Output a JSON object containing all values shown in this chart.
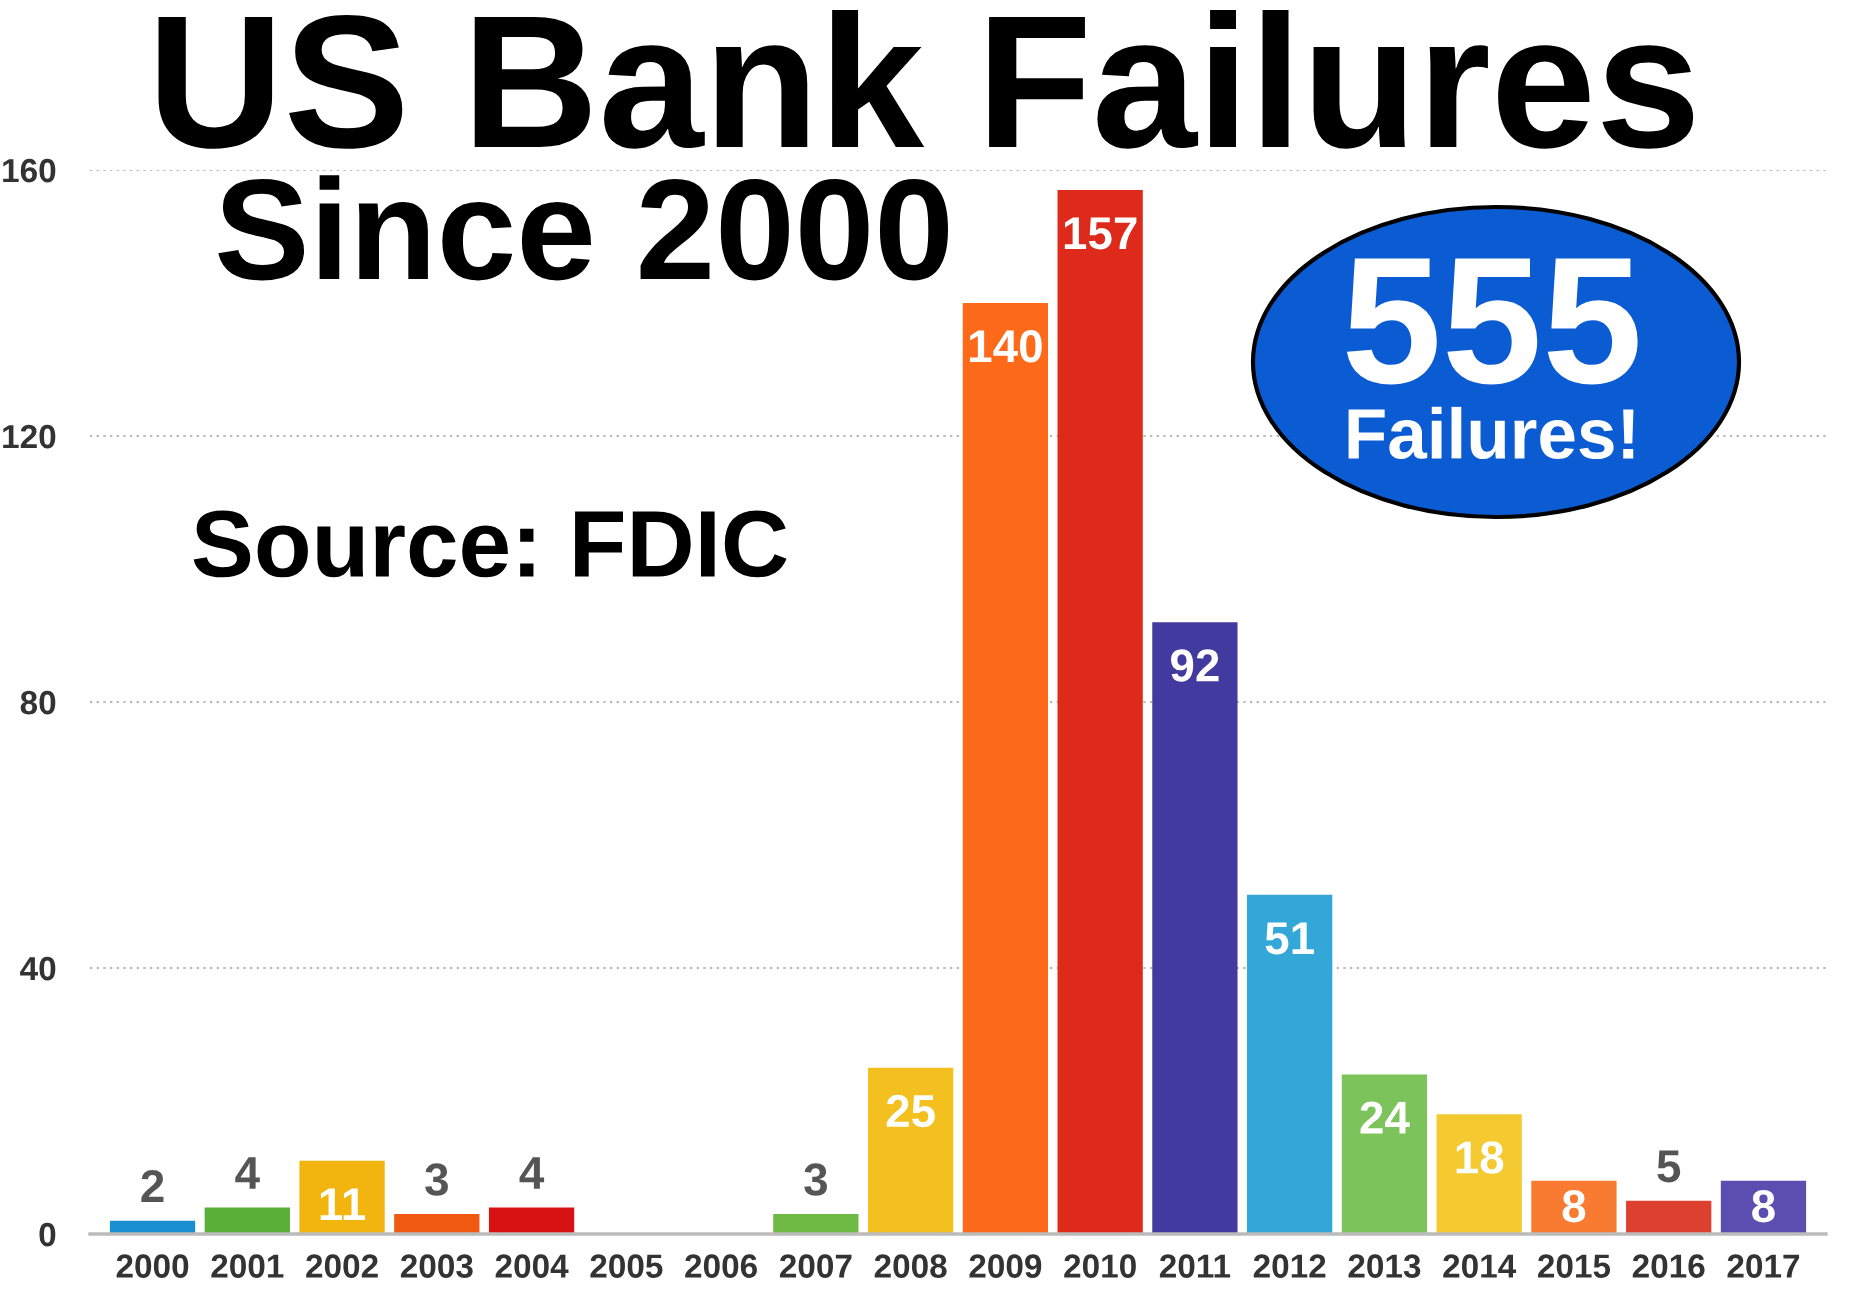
{
  "chart_data": {
    "type": "bar",
    "title": "US Bank Failures",
    "subtitle": "Since 2000",
    "annotations": [
      "Source: FDIC",
      "555",
      "Failures!"
    ],
    "categories": [
      "2000",
      "2001",
      "2002",
      "2003",
      "2004",
      "2005",
      "2006",
      "2007",
      "2008",
      "2009",
      "2010",
      "2011",
      "2012",
      "2013",
      "2014",
      "2015",
      "2016",
      "2017"
    ],
    "values": [
      2,
      4,
      11,
      3,
      4,
      0,
      0,
      3,
      25,
      140,
      157,
      92,
      51,
      24,
      18,
      8,
      5,
      8
    ],
    "colors": [
      "#1a8fd0",
      "#5aaf38",
      "#f2b40f",
      "#f05a10",
      "#d81212",
      "#5c4eb0",
      "#33a8d8",
      "#6dba45",
      "#f4c01f",
      "#fd6a1a",
      "#dd2a1a",
      "#433a9f",
      "#33a8d8",
      "#7dc35c",
      "#f5c930",
      "#f97b32",
      "#de4030",
      "#5c4eb0"
    ],
    "value_labels": [
      "2",
      "4",
      "11",
      "3",
      "4",
      null,
      null,
      "3",
      "25",
      "140",
      "157",
      "92",
      "51",
      "24",
      "18",
      "8",
      "5",
      "8"
    ],
    "ylim": [
      0,
      160
    ],
    "yticks": [
      0,
      40,
      80,
      120,
      160
    ],
    "grid": "y"
  }
}
